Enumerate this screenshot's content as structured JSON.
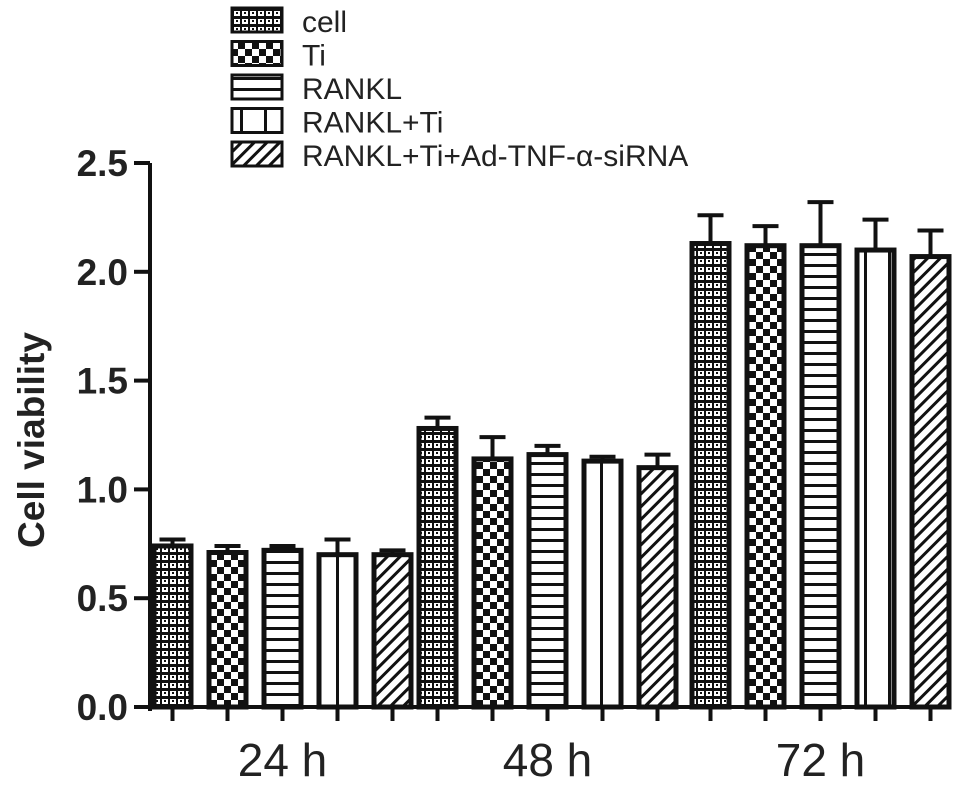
{
  "chart_data": {
    "type": "bar",
    "title": "",
    "xlabel": "",
    "ylabel": "Cell viability",
    "categories": [
      "24 h",
      "48 h",
      "72 h"
    ],
    "ylim": [
      0,
      2.5
    ],
    "yticks": [
      "0.0",
      "0.5",
      "1.0",
      "1.5",
      "2.0",
      "2.5"
    ],
    "grid": false,
    "legend_position": "top",
    "series": [
      {
        "name": "cell",
        "pattern": "dotted-grid",
        "values": [
          0.74,
          1.28,
          2.13
        ],
        "errors": [
          0.03,
          0.05,
          0.13
        ]
      },
      {
        "name": "Ti",
        "pattern": "checker",
        "values": [
          0.71,
          1.14,
          2.12
        ],
        "errors": [
          0.03,
          0.1,
          0.09
        ]
      },
      {
        "name": "RANKL",
        "pattern": "horizontal-lines",
        "values": [
          0.72,
          1.16,
          2.12
        ],
        "errors": [
          0.02,
          0.04,
          0.2
        ]
      },
      {
        "name": "RANKL+Ti",
        "pattern": "vertical-lines",
        "values": [
          0.7,
          1.13,
          2.1
        ],
        "errors": [
          0.07,
          0.02,
          0.14
        ]
      },
      {
        "name": "RANKL+Ti+Ad-TNF-α-siRNA",
        "pattern": "diagonal-lines",
        "values": [
          0.7,
          1.1,
          2.07
        ],
        "errors": [
          0.02,
          0.06,
          0.12
        ]
      }
    ]
  }
}
